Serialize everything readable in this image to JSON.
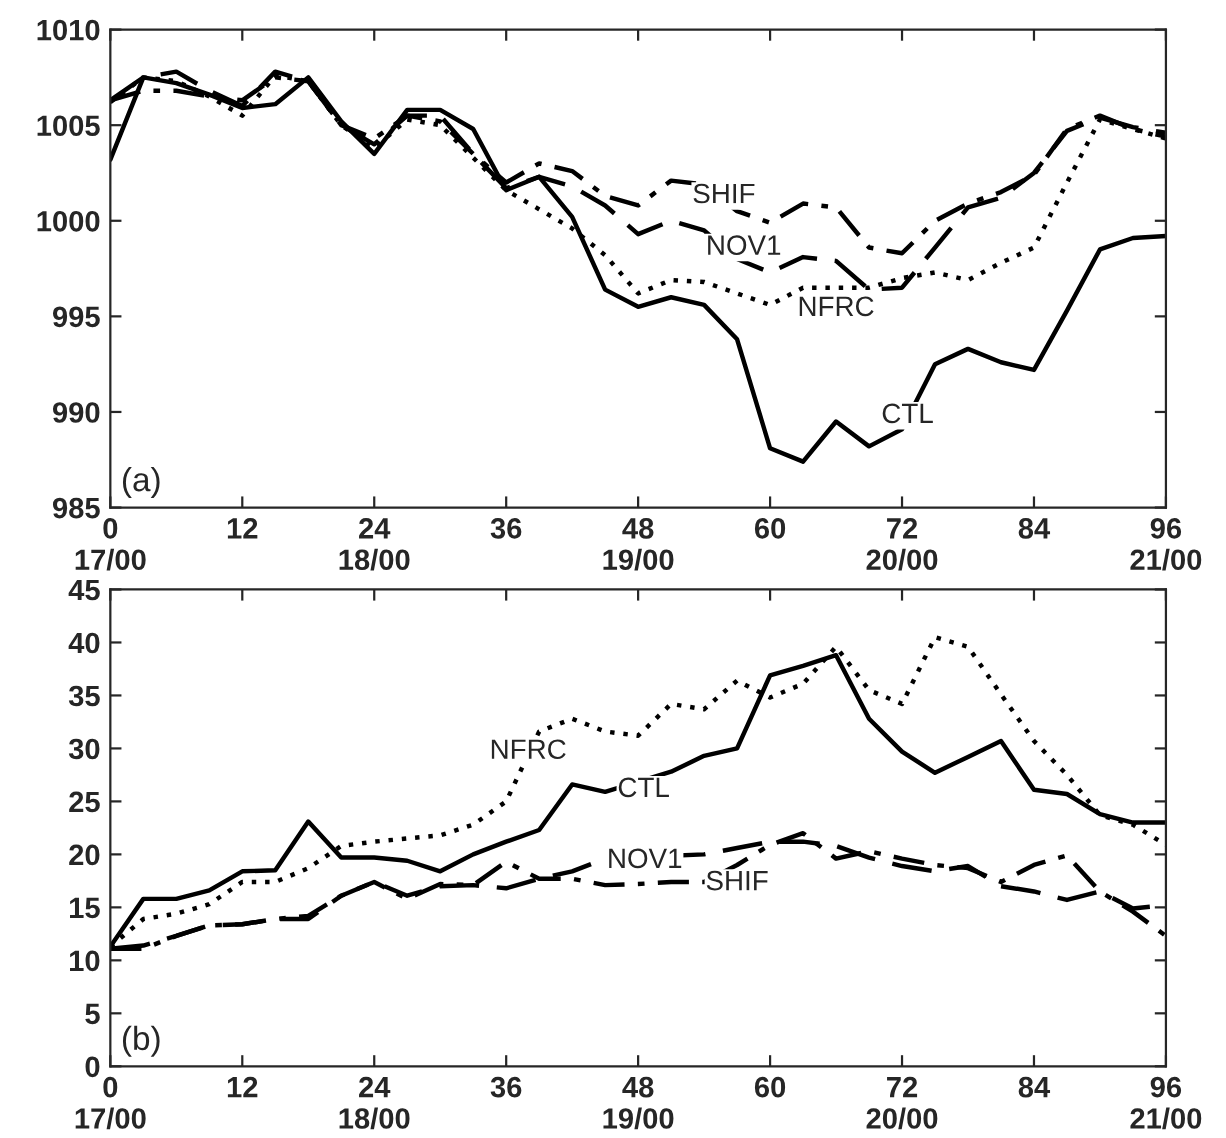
{
  "chart_data": [
    {
      "type": "line",
      "x": [
        0,
        3,
        6,
        9,
        12,
        15,
        18,
        21,
        24,
        27,
        30,
        33,
        36,
        39,
        42,
        45,
        48,
        51,
        54,
        57,
        60,
        63,
        66,
        69,
        72,
        75,
        78,
        81,
        84,
        87,
        90,
        93,
        96
      ],
      "series": [
        {
          "color": "#000000",
          "line_style": "solid",
          "values": [
            1003.2,
            1007.5,
            1007.2,
            1006.6,
            1005.9,
            1006.1,
            1007.5,
            1005.2,
            1003.5,
            1005.8,
            1005.8,
            1004.8,
            1001.6,
            1002.3,
            1000.2,
            996.4,
            995.5,
            996.0,
            995.6,
            993.8,
            988.1,
            987.4,
            989.5,
            988.2,
            989.1,
            992.5,
            993.3,
            992.6,
            992.2,
            995.3,
            998.5,
            999.1,
            999.2
          ]
        },
        {
          "color": "#000000",
          "line_style": "dotted",
          "values": [
            1006.2,
            1007.5,
            1007.3,
            1006.5,
            1005.5,
            1007.6,
            1007.3,
            1005.0,
            1003.8,
            1005.3,
            1005.0,
            1003.3,
            1001.6,
            1000.6,
            999.6,
            998.2,
            996.2,
            996.9,
            996.8,
            996.2,
            995.6,
            996.5,
            null,
            996.5,
            997.0,
            997.3,
            996.9,
            997.8,
            998.6,
            1002.0,
            1005.3,
            1004.8,
            1004.3
          ]
        },
        {
          "color": "#000000",
          "line_style": "dashed",
          "values": [
            1006.3,
            1007.5,
            1007.8,
            1006.8,
            1006.0,
            1007.8,
            1007.3,
            1005.0,
            1004.0,
            1005.5,
            1005.5,
            1003.5,
            1001.7,
            1002.3,
            1001.8,
            1000.8,
            999.3,
            1000.0,
            999.5,
            998.0,
            997.3,
            998.1,
            997.9,
            996.4,
            996.5,
            998.6,
            1000.7,
            1001.2,
            1002.5,
            1004.7,
            1005.4,
            1004.9,
            1004.6
          ]
        },
        {
          "color": "#000000",
          "line_style": "dashdot",
          "values": [
            1006.3,
            1006.8,
            1006.8,
            1006.5,
            1006.3,
            1007.5,
            1007.3,
            1005.0,
            1004.3,
            1005.5,
            1005.2,
            1003.5,
            1002.0,
            1003.0,
            1002.6,
            1001.3,
            1000.8,
            1002.1,
            1001.9,
            1000.5,
            999.9,
            1000.9,
            1000.7,
            998.6,
            998.3,
            1000.0,
            1000.9,
            1001.5,
            1002.4,
            1004.8,
            1005.5,
            1004.8,
            1004.4
          ]
        }
      ],
      "annotations": [
        "(a)",
        {
          "text": "SHIF",
          "x": 55.8,
          "y": 1001.3
        },
        {
          "text": "NOV1",
          "x": 57.6,
          "y": 998.6
        },
        {
          "text": "NFRC",
          "x": 66,
          "y": 995.4
        },
        {
          "text": "CTL",
          "x": 72.5,
          "y": 989.8
        }
      ],
      "xlim": [
        0,
        96
      ],
      "ylim": [
        985,
        1010
      ],
      "xticks": [
        {
          "value": 0,
          "label": "0\n17/00"
        },
        12,
        {
          "value": 24,
          "label": "24\n18/00"
        },
        36,
        {
          "value": 48,
          "label": "48\n19/00"
        },
        60,
        {
          "value": 72,
          "label": "72\n20/00"
        },
        84,
        {
          "value": 96,
          "label": "96\n21/00"
        }
      ],
      "yticks": [
        985,
        990,
        995,
        1000,
        1005,
        1010
      ],
      "grid": false,
      "legend": false
    },
    {
      "type": "line",
      "x": [
        0,
        3,
        6,
        9,
        12,
        15,
        18,
        21,
        24,
        27,
        30,
        33,
        36,
        39,
        42,
        45,
        48,
        51,
        54,
        57,
        60,
        63,
        66,
        69,
        72,
        75,
        78,
        81,
        84,
        87,
        90,
        93,
        96
      ],
      "series": [
        {
          "color": "#000000",
          "line_style": "solid",
          "values": [
            11.3,
            15.8,
            15.8,
            16.6,
            18.4,
            18.5,
            23.1,
            19.7,
            19.7,
            19.4,
            18.4,
            20.0,
            21.2,
            22.3,
            26.6,
            25.9,
            null,
            27.8,
            29.3,
            30.0,
            36.9,
            37.8,
            38.8,
            32.8,
            29.7,
            27.7,
            29.2,
            30.7,
            26.1,
            25.7,
            23.8,
            23.0,
            23.0
          ]
        },
        {
          "color": "#000000",
          "line_style": "dotted",
          "values": [
            11.3,
            13.9,
            14.4,
            15.3,
            17.4,
            17.4,
            18.7,
            20.8,
            21.2,
            21.5,
            21.8,
            22.8,
            25.0,
            31.6,
            32.8,
            31.6,
            31.2,
            34.2,
            33.7,
            36.4,
            34.8,
            36.1,
            39.6,
            35.5,
            34.2,
            40.5,
            39.6,
            35.1,
            30.7,
            27.5,
            23.7,
            22.8,
            20.9
          ]
        },
        {
          "color": "#000000",
          "line_style": "dashed",
          "values": [
            11.1,
            11.4,
            12.3,
            13.3,
            13.4,
            13.9,
            13.9,
            16.1,
            17.4,
            16.1,
            17.0,
            17.1,
            16.8,
            17.7,
            18.4,
            19.6,
            null,
            null,
            20.0,
            20.6,
            21.2,
            21.2,
            20.8,
            19.7,
            18.9,
            18.4,
            18.9,
            17.0,
            16.5,
            15.7,
            16.5,
            14.9,
            15.2
          ]
        },
        {
          "color": "#000000",
          "line_style": "dashdot",
          "values": [
            11.1,
            11.1,
            12.3,
            13.3,
            13.4,
            13.9,
            14.2,
            16.1,
            17.4,
            15.8,
            17.2,
            17.1,
            19.3,
            17.7,
            17.7,
            17.1,
            17.2,
            17.4,
            17.4,
            19.0,
            20.9,
            22.0,
            19.6,
            20.3,
            19.6,
            19.0,
            18.7,
            17.4,
            19.0,
            19.9,
            16.5,
            14.6,
            12.3
          ]
        }
      ],
      "annotations": [
        "(b)",
        {
          "text": "NFRC",
          "x": 38,
          "y": 29.7
        },
        {
          "text": "CTL",
          "x": 48.5,
          "y": 26.1
        },
        {
          "text": "NOV1",
          "x": 48.6,
          "y": 19.4
        },
        {
          "text": "SHIF",
          "x": 57,
          "y": 17.3
        }
      ],
      "xlim": [
        0,
        96
      ],
      "ylim": [
        0,
        45
      ],
      "xticks": [
        {
          "value": 0,
          "label": "0\n17/00"
        },
        12,
        {
          "value": 24,
          "label": "24\n18/00"
        },
        36,
        {
          "value": 48,
          "label": "48\n19/00"
        },
        60,
        {
          "value": 72,
          "label": "72\n20/00"
        },
        84,
        {
          "value": 96,
          "label": "96\n21/00"
        }
      ],
      "yticks": [
        0,
        5,
        10,
        15,
        20,
        25,
        30,
        35,
        40,
        45
      ],
      "grid": false,
      "legend": false
    }
  ]
}
